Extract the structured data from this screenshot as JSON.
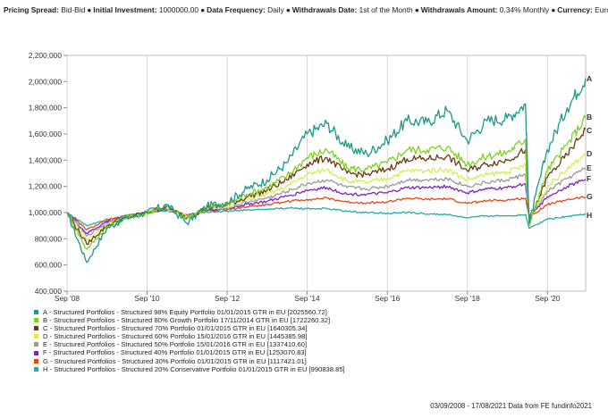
{
  "header": {
    "items": [
      {
        "label": "Pricing Spread:",
        "value": "Bid-Bid"
      },
      {
        "label": "Initial Investment:",
        "value": "1000000.00"
      },
      {
        "label": "Data Frequency:",
        "value": "Daily"
      },
      {
        "label": "Withdrawals Date:",
        "value": "1st of the Month"
      },
      {
        "label": "Withdrawals Amount:",
        "value": "0.34% Monthly"
      },
      {
        "label": "Currency:",
        "value": "Euros"
      }
    ]
  },
  "footer": {
    "text": "03/09/2008 - 17/08/2021 Data from FE fundinfo2021"
  },
  "chart_data": {
    "type": "line",
    "title": "",
    "xlabel": "",
    "ylabel": "",
    "x_ticks": [
      "Sep '08",
      "Sep '10",
      "Sep '12",
      "Sep '14",
      "Sep '16",
      "Sep '18",
      "Sep '20"
    ],
    "y_ticks": [
      "400,000",
      "600,000",
      "800,000",
      "1,000,000",
      "1,200,000",
      "1,400,000",
      "1,600,000",
      "1,800,000",
      "2,000,000",
      "2,200,000"
    ],
    "xlim": [
      "2008-09-03",
      "2021-08-17"
    ],
    "ylim": [
      400000,
      2200000
    ],
    "grid": "vertical",
    "x": [
      "2008-09-03",
      "2009-03-01",
      "2009-09-01",
      "2010-03-01",
      "2010-09-01",
      "2011-03-01",
      "2011-09-01",
      "2012-03-01",
      "2012-09-01",
      "2013-03-01",
      "2013-09-01",
      "2014-03-01",
      "2014-09-01",
      "2015-03-01",
      "2015-09-01",
      "2016-03-01",
      "2016-09-01",
      "2017-03-01",
      "2017-09-01",
      "2018-03-01",
      "2018-09-01",
      "2019-03-01",
      "2019-09-01",
      "2020-02-15",
      "2020-03-20",
      "2020-09-01",
      "2021-03-01",
      "2021-08-17"
    ],
    "series": [
      {
        "label": "A",
        "name": "A - Structured Portfolios - Structured 98% Equity Portfolio 01/01/2015 GTR in EU [2025560.72]",
        "color": "#1a9a8a",
        "values": [
          1000000,
          620000,
          880000,
          960000,
          1000000,
          1060000,
          920000,
          1050000,
          1080000,
          1180000,
          1250000,
          1380000,
          1600000,
          1680000,
          1500000,
          1450000,
          1550000,
          1700000,
          1690000,
          1780000,
          1550000,
          1700000,
          1720000,
          1830000,
          920000,
          1480000,
          1800000,
          2025560.72
        ]
      },
      {
        "label": "B",
        "name": "B - Structured Portfolios - Structured 80% Growth Portfolio 17/11/2014 GTR in EU [1722260.32]",
        "color": "#7fd020",
        "values": [
          1000000,
          720000,
          890000,
          960000,
          1000000,
          1050000,
          950000,
          1040000,
          1060000,
          1140000,
          1190000,
          1280000,
          1420000,
          1480000,
          1340000,
          1330000,
          1380000,
          1480000,
          1480000,
          1500000,
          1370000,
          1430000,
          1460000,
          1560000,
          900000,
          1320000,
          1520000,
          1722260.32
        ]
      },
      {
        "label": "C",
        "name": "C - Structured Portfolios - Structured 70% Portfolio 01/01/2015 GTR in EU [1640305.34]",
        "color": "#6b3a10",
        "values": [
          1000000,
          760000,
          900000,
          960000,
          1000000,
          1045000,
          960000,
          1035000,
          1055000,
          1120000,
          1170000,
          1250000,
          1370000,
          1420000,
          1300000,
          1290000,
          1330000,
          1410000,
          1410000,
          1430000,
          1320000,
          1370000,
          1400000,
          1480000,
          920000,
          1270000,
          1440000,
          1640305.34
        ]
      },
      {
        "label": "D",
        "name": "D - Structured Portfolios - Structured 60% Portfolio 15/01/2016 GTR in EU [1445385.98]",
        "color": "#d8ec5a",
        "values": [
          1000000,
          790000,
          910000,
          965000,
          1000000,
          1040000,
          965000,
          1030000,
          1045000,
          1100000,
          1140000,
          1200000,
          1290000,
          1330000,
          1240000,
          1230000,
          1260000,
          1320000,
          1320000,
          1330000,
          1250000,
          1290000,
          1310000,
          1360000,
          940000,
          1200000,
          1330000,
          1445385.98
        ]
      },
      {
        "label": "E",
        "name": "E - Structured Portfolios - Structured 50% Portfolio 15/01/2016 GTR in EU [1337410.60]",
        "color": "#9a9a9a",
        "values": [
          1000000,
          820000,
          920000,
          970000,
          1000000,
          1035000,
          970000,
          1025000,
          1035000,
          1080000,
          1110000,
          1160000,
          1220000,
          1250000,
          1190000,
          1180000,
          1200000,
          1250000,
          1250000,
          1260000,
          1200000,
          1230000,
          1250000,
          1290000,
          950000,
          1160000,
          1260000,
          1337410.6
        ]
      },
      {
        "label": "F",
        "name": "F - Structured Portfolios - Structured 40% Portfolio 01/01/2015 GTR in EU [1253070.83]",
        "color": "#7a22cc",
        "values": [
          1000000,
          840000,
          930000,
          972000,
          1000000,
          1030000,
          975000,
          1020000,
          1030000,
          1065000,
          1085000,
          1125000,
          1170000,
          1190000,
          1140000,
          1140000,
          1150000,
          1190000,
          1190000,
          1200000,
          1150000,
          1180000,
          1190000,
          1220000,
          960000,
          1120000,
          1200000,
          1253070.83
        ]
      },
      {
        "label": "G",
        "name": "G - Structured Portfolios - Structured 30% Portfolio 01/01/2015 GTR in EU [1117421.01]",
        "color": "#e04a1a",
        "values": [
          1000000,
          870000,
          940000,
          975000,
          1000000,
          1025000,
          980000,
          1015000,
          1020000,
          1045000,
          1060000,
          1085000,
          1100000,
          1110000,
          1080000,
          1075000,
          1080000,
          1110000,
          1100000,
          1105000,
          1070000,
          1090000,
          1095000,
          1110000,
          970000,
          1060000,
          1100000,
          1117421.01
        ]
      },
      {
        "label": "H",
        "name": "H - Structured Portfolios - Structured 20% Conservative Portfolio 01/01/2015 GTR in EU [990838.85]",
        "color": "#20b0a0",
        "values": [
          1000000,
          900000,
          950000,
          978000,
          1000000,
          1015000,
          985000,
          1005000,
          1010000,
          1020000,
          1025000,
          1035000,
          1030000,
          1030000,
          1010000,
          1000000,
          995000,
          1000000,
          990000,
          985000,
          960000,
          975000,
          975000,
          985000,
          880000,
          950000,
          970000,
          990838.85
        ]
      }
    ]
  }
}
